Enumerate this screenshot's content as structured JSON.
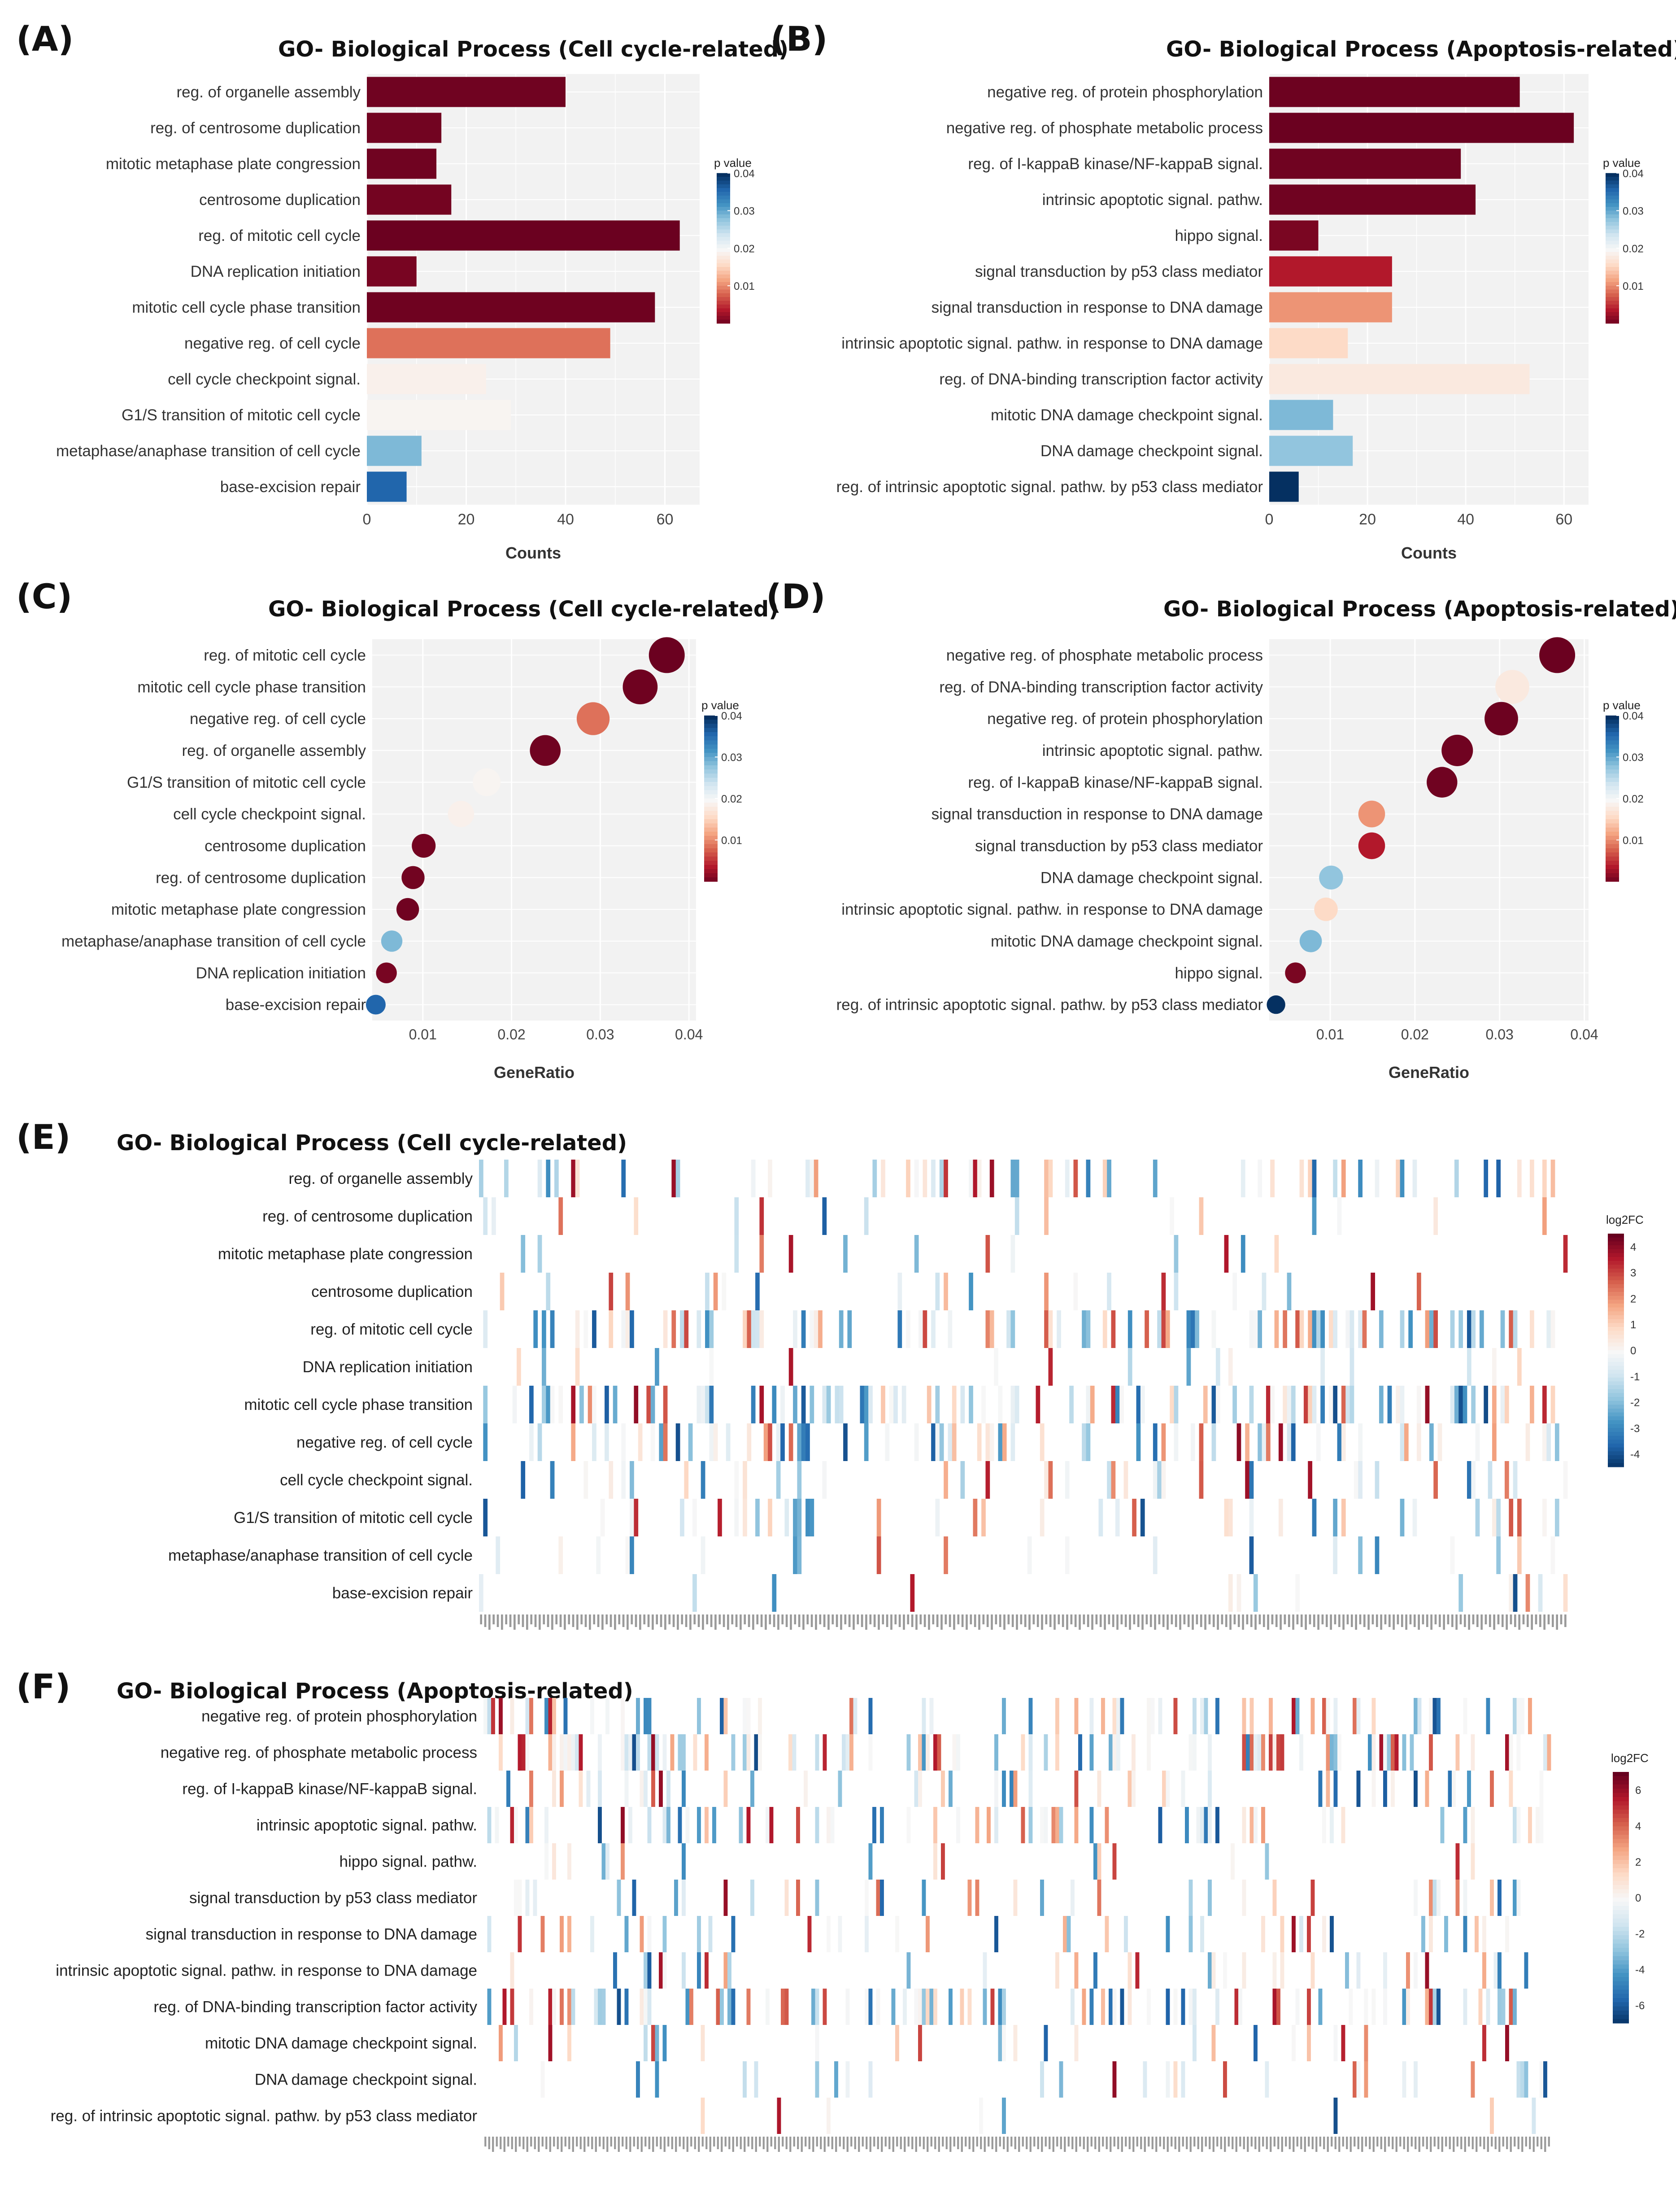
{
  "panels": {
    "A": {
      "label": "(A)",
      "title": "GO- Biological Process (Cell cycle-related)"
    },
    "B": {
      "label": "(B)",
      "title": "GO- Biological Process (Apoptosis-related)"
    },
    "C": {
      "label": "(C)",
      "title": "GO- Biological Process (Cell cycle-related)"
    },
    "D": {
      "label": "(D)",
      "title": "GO- Biological Process (Apoptosis-related)"
    },
    "E": {
      "label": "(E)",
      "title": "GO- Biological Process (Cell cycle-related)"
    },
    "F": {
      "label": "(F)",
      "title": "GO- Biological Process (Apoptosis-related)"
    }
  },
  "colors": {
    "low_p": "#67001f",
    "mid": "#f7f7f7",
    "high_p": "#08306b",
    "plot_bg": "#f2f2f2",
    "grid": "#ffffff"
  },
  "chart_data": [
    {
      "panel": "A",
      "type": "bar",
      "orientation": "horizontal",
      "title": "GO- Biological Process (Cell cycle-related)",
      "xlabel": "Counts",
      "xlim": [
        0,
        67
      ],
      "xticks": [
        0,
        20,
        40,
        60
      ],
      "legend": {
        "title": "p value",
        "ticks": [
          0.01,
          0.02,
          0.03,
          0.04
        ],
        "range": [
          0.0,
          0.04
        ],
        "placement": "right"
      },
      "categories": [
        "reg. of organelle assembly",
        "reg. of centrosome duplication",
        "mitotic metaphase plate congression",
        "centrosome duplication",
        "reg. of mitotic cell cycle",
        "DNA replication initiation",
        "mitotic cell cycle phase transition",
        "negative reg. of cell cycle",
        "cell cycle checkpoint signal.",
        "G1/S transition of mitotic cell cycle",
        "metaphase/anaphase transition of cell cycle",
        "base-excision repair"
      ],
      "values": [
        40,
        15,
        14,
        17,
        63,
        10,
        58,
        49,
        24,
        29,
        11,
        8
      ],
      "pvalues": [
        0.0005,
        0.0006,
        0.0005,
        0.0007,
        0.0002,
        0.0009,
        0.0004,
        0.009,
        0.019,
        0.0195,
        0.029,
        0.036
      ]
    },
    {
      "panel": "B",
      "type": "bar",
      "orientation": "horizontal",
      "title": "GO- Biological Process (Apoptosis-related)",
      "xlabel": "Counts",
      "xlim": [
        0,
        65
      ],
      "xticks": [
        0,
        20,
        40,
        60
      ],
      "legend": {
        "title": "p value",
        "ticks": [
          0.01,
          0.02,
          0.03,
          0.04
        ],
        "range": [
          0.0,
          0.04
        ],
        "placement": "right"
      },
      "categories": [
        "negative reg. of protein phosphorylation",
        "negative reg. of phosphate metabolic process",
        "reg. of I-kappaB kinase/NF-kappaB signal.",
        "intrinsic apoptotic signal. pathw.",
        "hippo signal.",
        "signal transduction by p53 class mediator",
        "signal transduction in response to DNA damage",
        "intrinsic apoptotic signal. pathw. in response to DNA damage",
        "reg. of DNA-binding transcription factor activity",
        "mitotic DNA damage checkpoint signal.",
        "DNA damage checkpoint signal.",
        "reg. of intrinsic apoptotic signal. pathw. by p53 class mediator"
      ],
      "values": [
        51,
        62,
        39,
        42,
        10,
        25,
        25,
        16,
        53,
        13,
        17,
        6
      ],
      "pvalues": [
        0.0003,
        0.0002,
        0.0005,
        0.0005,
        0.001,
        0.004,
        0.011,
        0.016,
        0.018,
        0.029,
        0.028,
        0.04
      ]
    },
    {
      "panel": "C",
      "type": "scatter",
      "title": "GO- Biological Process (Cell cycle-related)",
      "xlabel": "GeneRatio",
      "xlim": [
        0.0043,
        0.0408
      ],
      "xticks": [
        0.01,
        0.02,
        0.03,
        0.04
      ],
      "legend": {
        "title": "p value",
        "ticks": [
          0.01,
          0.02,
          0.03,
          0.04
        ],
        "range": [
          0.0,
          0.04
        ],
        "placement": "right"
      },
      "categories": [
        "reg. of mitotic cell cycle",
        "mitotic cell cycle phase transition",
        "negative reg. of cell cycle",
        "reg. of organelle assembly",
        "G1/S transition of mitotic cell cycle",
        "cell cycle checkpoint signal.",
        "centrosome duplication",
        "reg. of centrosome duplication",
        "mitotic metaphase plate congression",
        "metaphase/anaphase transition of cell cycle",
        "DNA replication initiation",
        "base-excision repair"
      ],
      "x": [
        0.0375,
        0.0345,
        0.0292,
        0.0238,
        0.0172,
        0.0143,
        0.0101,
        0.0089,
        0.0083,
        0.0065,
        0.0059,
        0.0047
      ],
      "counts": [
        63,
        58,
        49,
        40,
        29,
        24,
        17,
        15,
        14,
        11,
        10,
        8
      ],
      "pvalues": [
        0.0002,
        0.0004,
        0.009,
        0.0005,
        0.0195,
        0.019,
        0.0007,
        0.0006,
        0.0005,
        0.029,
        0.0009,
        0.036
      ]
    },
    {
      "panel": "D",
      "type": "scatter",
      "title": "GO- Biological Process (Apoptosis-related)",
      "xlabel": "GeneRatio",
      "xlim": [
        0.0028,
        0.0405
      ],
      "xticks": [
        0.01,
        0.02,
        0.03,
        0.04
      ],
      "legend": {
        "title": "p value",
        "ticks": [
          0.01,
          0.02,
          0.03,
          0.04
        ],
        "range": [
          0.0,
          0.04
        ],
        "placement": "right"
      },
      "categories": [
        "negative reg. of phosphate metabolic process",
        "reg. of DNA-binding transcription factor activity",
        "negative reg. of protein phosphorylation",
        "intrinsic apoptotic signal. pathw.",
        "reg. of I-kappaB kinase/NF-kappaB signal.",
        "signal transduction in response to DNA damage",
        "signal transduction by p53 class mediator",
        "DNA damage checkpoint signal.",
        "intrinsic apoptotic signal. pathw. in response to DNA damage",
        "mitotic DNA damage checkpoint signal.",
        "hippo signal.",
        "reg. of intrinsic apoptotic signal. pathw. by p53 class mediator"
      ],
      "x": [
        0.0368,
        0.0315,
        0.0302,
        0.025,
        0.0232,
        0.0149,
        0.0149,
        0.0101,
        0.0095,
        0.0077,
        0.0059,
        0.0036
      ],
      "counts": [
        62,
        53,
        51,
        42,
        39,
        25,
        25,
        17,
        16,
        13,
        10,
        6
      ],
      "pvalues": [
        0.0002,
        0.018,
        0.0003,
        0.0005,
        0.0005,
        0.011,
        0.004,
        0.028,
        0.016,
        0.029,
        0.001,
        0.04
      ]
    },
    {
      "panel": "E",
      "type": "heatmap",
      "title": "GO- Biological Process (Cell cycle-related)",
      "legend": {
        "title": "log2FC",
        "ticks": [
          4,
          3,
          2,
          1,
          0,
          -1,
          -2,
          -3,
          -4
        ],
        "range": [
          -4.5,
          4.5
        ],
        "placement": "right"
      },
      "rows": [
        "reg. of organelle assembly",
        "reg. of centrosome duplication",
        "mitotic metaphase plate congression",
        "centrosome duplication",
        "reg. of mitotic cell cycle",
        "DNA replication initiation",
        "mitotic cell cycle phase transition",
        "negative reg. of cell cycle",
        "cell cycle checkpoint signal.",
        "G1/S transition of mitotic cell cycle",
        "metaphase/anaphase transition of cell cycle",
        "base-excision repair"
      ],
      "ncols": 260,
      "seed": 17,
      "fill_rates": [
        0.22,
        0.06,
        0.06,
        0.07,
        0.35,
        0.06,
        0.32,
        0.28,
        0.15,
        0.17,
        0.07,
        0.04
      ]
    },
    {
      "panel": "F",
      "type": "heatmap",
      "title": "GO- Biological Process (Apoptosis-related)",
      "legend": {
        "title": "log2FC",
        "ticks": [
          6,
          4,
          2,
          0,
          -2,
          -4,
          -6
        ],
        "range": [
          -7,
          7
        ],
        "placement": "right"
      },
      "rows": [
        "negative reg. of protein phosphorylation",
        "negative reg. of phosphate metabolic process",
        "reg. of I-kappaB kinase/NF-kappaB signal.",
        "intrinsic apoptotic signal. pathw.",
        "hippo signal. pathw.",
        "signal transduction by p53 class mediator",
        "signal transduction in response to DNA damage",
        "intrinsic apoptotic signal. pathw. in response to DNA damage",
        "reg. of DNA-binding transcription factor activity",
        "mitotic DNA damage checkpoint signal.",
        "DNA damage checkpoint signal.",
        "reg. of intrinsic apoptotic signal. pathw. by p53 class mediator"
      ],
      "ncols": 280,
      "seed": 41,
      "fill_rates": [
        0.28,
        0.32,
        0.22,
        0.24,
        0.06,
        0.14,
        0.15,
        0.1,
        0.3,
        0.09,
        0.1,
        0.03
      ]
    }
  ]
}
